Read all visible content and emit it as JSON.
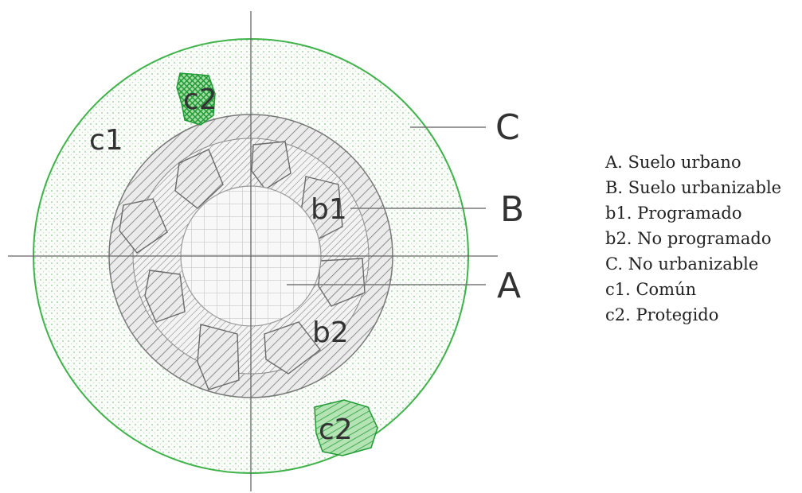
{
  "diagram": {
    "zone_labels": {
      "c1": "c1",
      "c2_top": "c2",
      "c2_bottom": "c2",
      "b1": "b1",
      "b2": "b2"
    },
    "callouts": {
      "A": "A",
      "B": "B",
      "C": "C"
    },
    "colors": {
      "protected_land": "#2eaa3f",
      "non_buildable_boundary": "#3fb24a",
      "hatch": "#555555",
      "line": "#666666"
    }
  },
  "legend": {
    "items": [
      "A. Suelo urbano",
      "B. Suelo urbanizable",
      "b1. Programado",
      "b2. No programado",
      "C. No urbanizable",
      "c1. Común",
      "c2. Protegido"
    ]
  }
}
